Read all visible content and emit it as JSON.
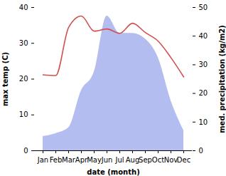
{
  "chart_data": {
    "type": "line",
    "x_label": "date (month)",
    "y_label": "max temp (C)",
    "y2_label": "med. precipitation (kg/m2)",
    "categories": [
      "Jan",
      "Feb",
      "Mar",
      "Apr",
      "May",
      "Jun",
      "Jul",
      "Aug",
      "Sep",
      "Oct",
      "Nov",
      "Dec"
    ],
    "ylim": [
      0,
      40
    ],
    "yticks": [
      0,
      10,
      20,
      30,
      40
    ],
    "y2lim": [
      0,
      50
    ],
    "y2ticks": [
      0,
      10,
      20,
      30,
      40,
      50
    ],
    "series": [
      {
        "name": "med. precipitation",
        "type": "area",
        "axis": "y2",
        "color": "#b3bdf0",
        "values": [
          5,
          6,
          8,
          21,
          27.5,
          47,
          41,
          41,
          39,
          32.5,
          17.5,
          7
        ]
      },
      {
        "name": "max temp",
        "type": "line",
        "axis": "y",
        "color": "#d0504f",
        "values": [
          21.2,
          21,
          34.4,
          37.6,
          33.4,
          34,
          32.8,
          35.6,
          33,
          30.6,
          26,
          20.6
        ]
      }
    ]
  }
}
